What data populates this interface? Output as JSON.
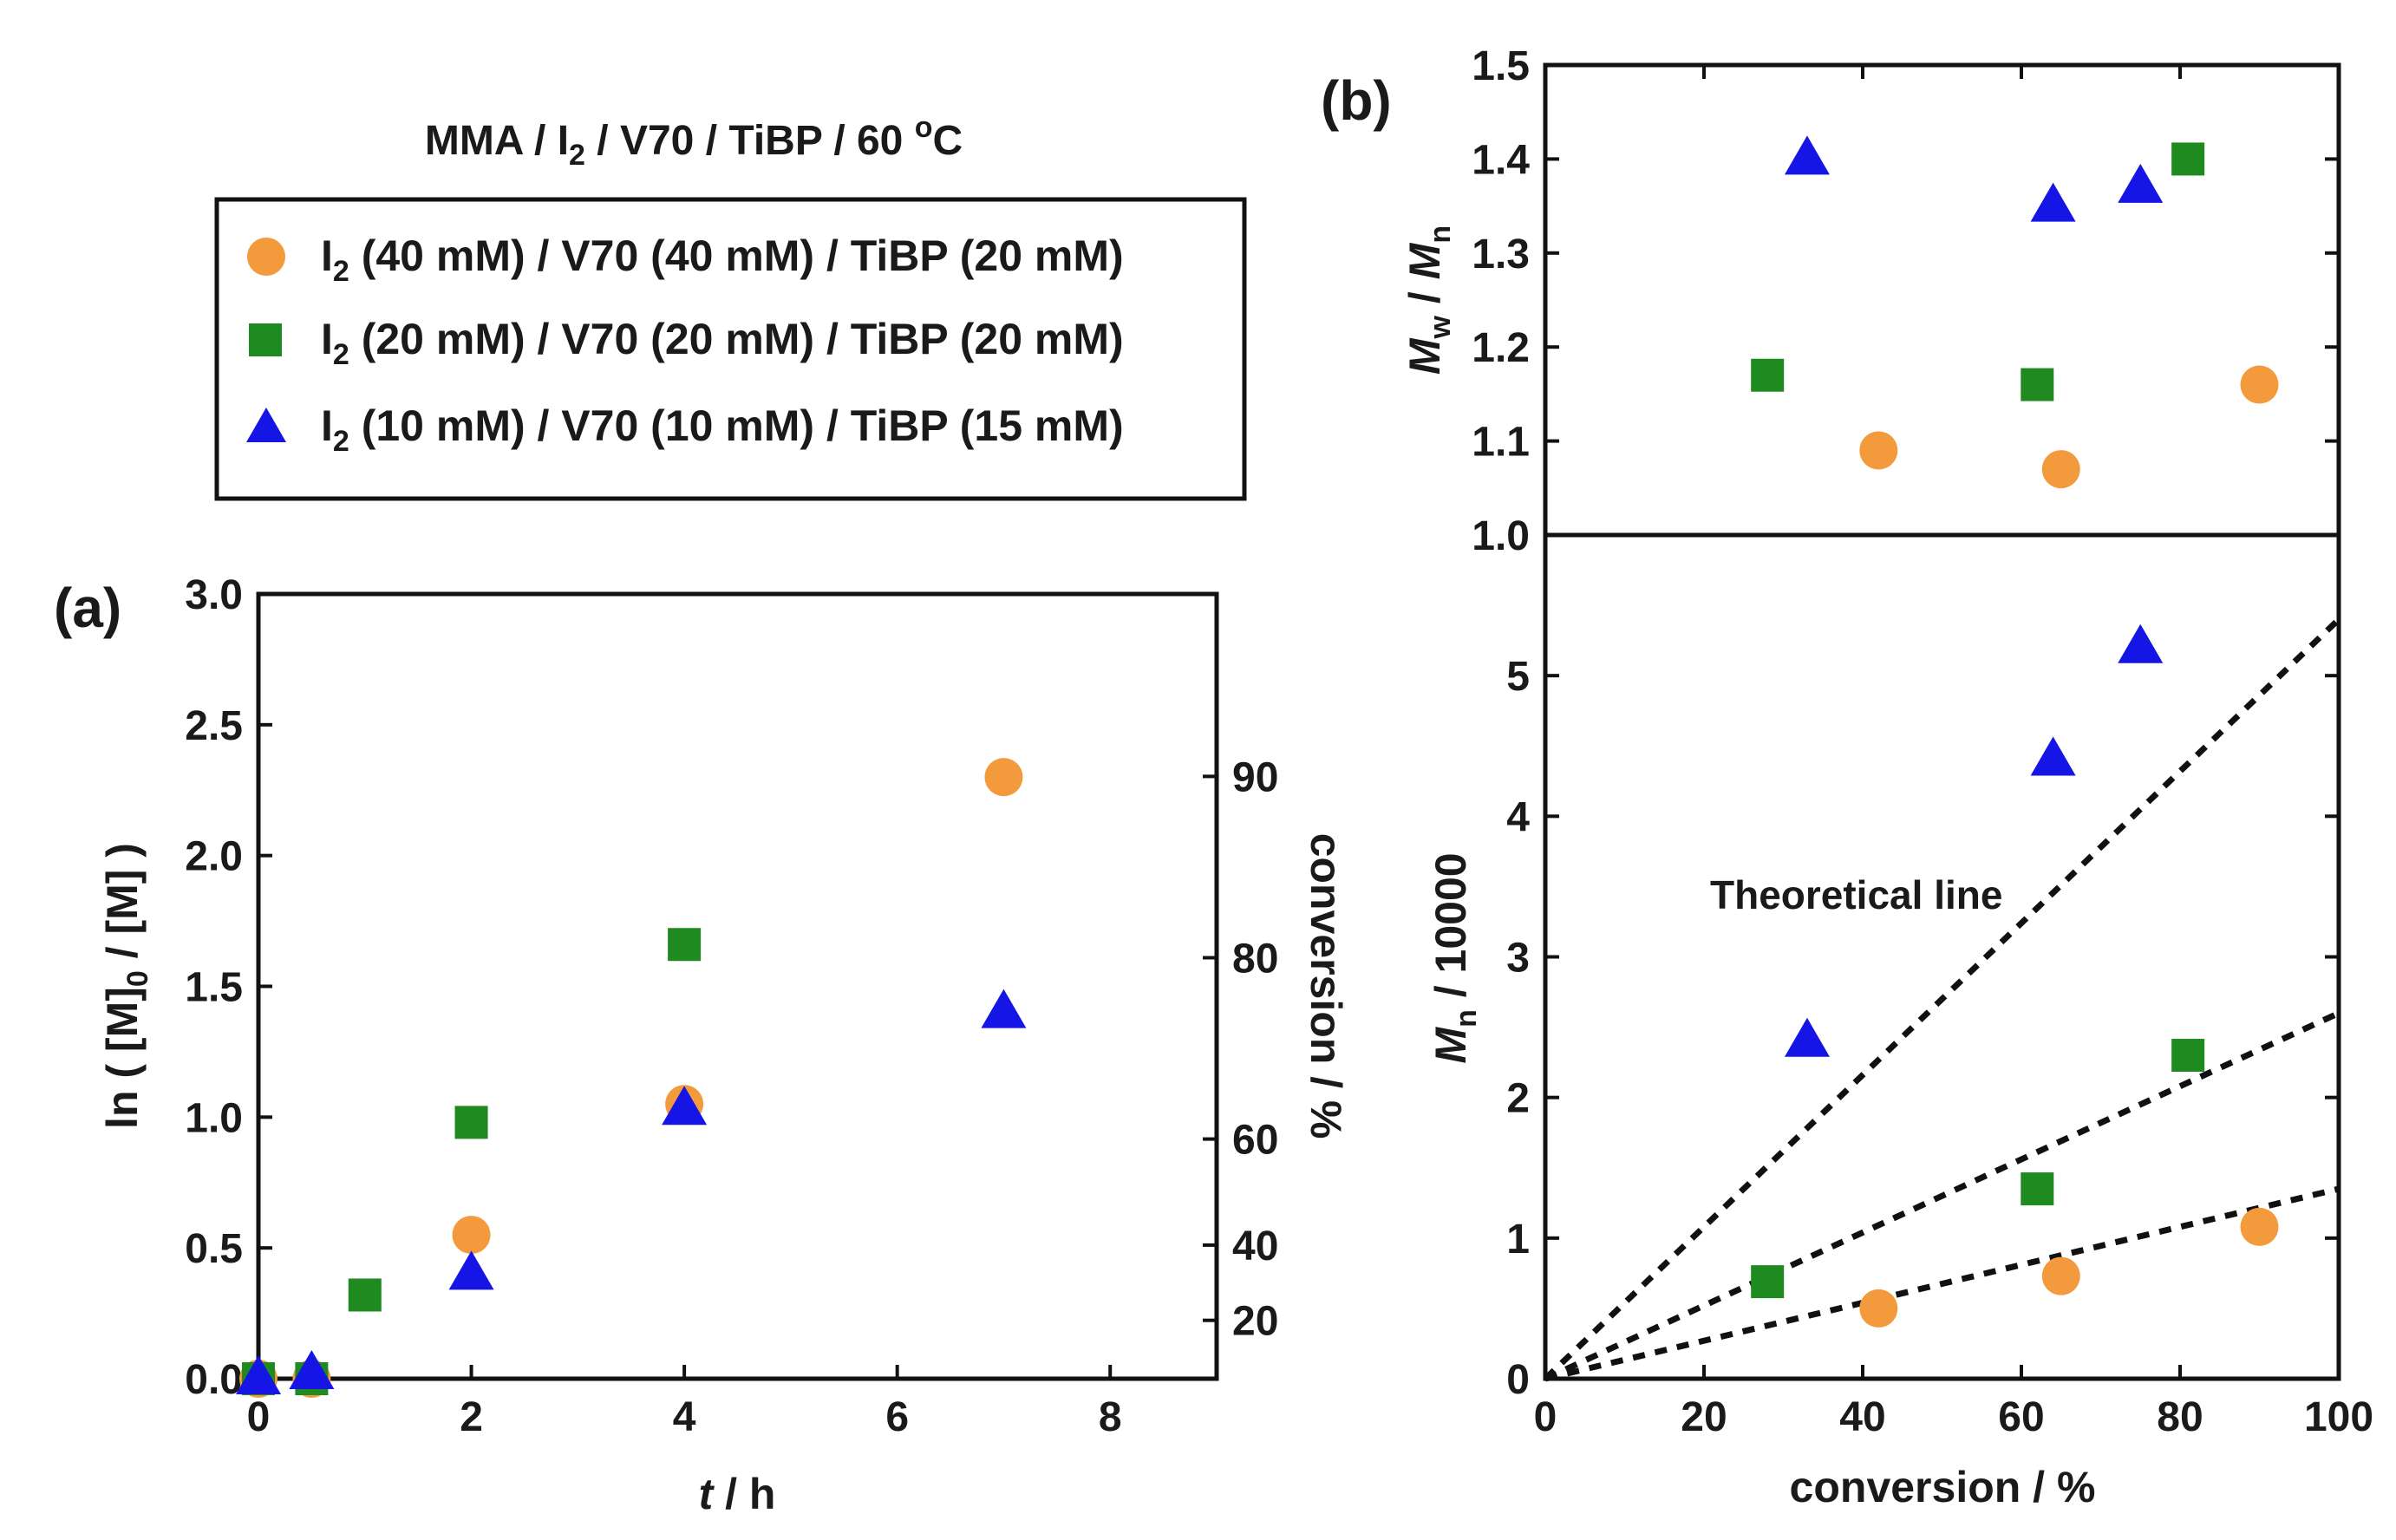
{
  "figure_title": {
    "text": "MMA / I",
    "sub": "2",
    "rest": " / V70 / TiBP / 60 ",
    "sup": "o",
    "tail": "C"
  },
  "legend": [
    {
      "id": "s40",
      "pre": "I",
      "sub": "2",
      "text": " (40 mM) / V70 (40 mM) / TiBP (20 mM)",
      "marker": "circle",
      "color": "#F39A3C"
    },
    {
      "id": "s20",
      "pre": "I",
      "sub": "2",
      "text": " (20 mM) / V70 (20 mM) / TiBP (20 mM)",
      "marker": "square",
      "color": "#1F8A1F"
    },
    {
      "id": "s10",
      "pre": "I",
      "sub": "2",
      "text": " (10 mM) / V70 (10 mM) / TiBP (15 mM)",
      "marker": "triangle",
      "color": "#1515E6"
    }
  ],
  "chart_data": [
    {
      "id": "a",
      "panel_label": "(a)",
      "type": "scatter",
      "xlabel": {
        "italic": "t",
        "rest": " / h"
      },
      "ylabel": {
        "a": "ln ( [M]",
        "sub": "0",
        "b": " / [M] )"
      },
      "y2label": "conversion / %",
      "xlim": [
        0,
        9
      ],
      "ylim": [
        0,
        3.0
      ],
      "xticks": [
        0,
        2,
        4,
        6,
        8
      ],
      "xtick_labels": [
        "0",
        "2",
        "4",
        "6",
        "8"
      ],
      "yticks": [
        0,
        0.5,
        1.0,
        1.5,
        2.0,
        2.5,
        3.0
      ],
      "ytick_labels": [
        "0.0",
        "0.5",
        "1.0",
        "1.5",
        "2.0",
        "2.5",
        "3.0"
      ],
      "y2ticks": [
        20,
        40,
        60,
        80,
        90
      ],
      "y2tick_labels": [
        "20",
        "40",
        "60",
        "80",
        "90"
      ],
      "series": [
        {
          "name": "I2 (40 mM) / V70 (40 mM) / TiBP (20 mM)",
          "marker": "circle",
          "color": "#F39A3C",
          "x": [
            0,
            0.5,
            2,
            4,
            7
          ],
          "y": [
            0.0,
            0.0,
            0.55,
            1.05,
            2.3
          ]
        },
        {
          "name": "I2 (20 mM) / V70 (20 mM) / TiBP (20 mM)",
          "marker": "square",
          "color": "#1F8A1F",
          "x": [
            0,
            0.5,
            1,
            2,
            4
          ],
          "y": [
            0.0,
            0.0,
            0.32,
            0.98,
            1.66
          ]
        },
        {
          "name": "I2 (10 mM) / V70 (10 mM) / TiBP (15 mM)",
          "marker": "triangle",
          "color": "#1515E6",
          "x": [
            0,
            0.5,
            2,
            4,
            7
          ],
          "y": [
            0.0,
            0.02,
            0.4,
            1.03,
            1.4
          ]
        }
      ]
    },
    {
      "id": "b_top",
      "panel_label": "(b)",
      "type": "scatter",
      "ylabel": {
        "i1": "M",
        "sub1": "w",
        "mid": " / ",
        "i2": "M",
        "sub2": "n"
      },
      "xlim": [
        0,
        100
      ],
      "ylim": [
        1.0,
        1.5
      ],
      "yticks": [
        1.0,
        1.1,
        1.2,
        1.3,
        1.4,
        1.5
      ],
      "ytick_labels": [
        "1.0",
        "1.1",
        "1.2",
        "1.3",
        "1.4",
        "1.5"
      ],
      "series": [
        {
          "name": "I2 (40 mM) / V70 (40 mM) / TiBP (20 mM)",
          "marker": "circle",
          "color": "#F39A3C",
          "x": [
            42,
            65,
            90
          ],
          "y": [
            1.09,
            1.07,
            1.16
          ]
        },
        {
          "name": "I2 (20 mM) / V70 (20 mM) / TiBP (20 mM)",
          "marker": "square",
          "color": "#1F8A1F",
          "x": [
            28,
            62,
            81
          ],
          "y": [
            1.17,
            1.16,
            1.4
          ]
        },
        {
          "name": "I2 (10 mM) / V70 (10 mM) / TiBP (15 mM)",
          "marker": "triangle",
          "color": "#1515E6",
          "x": [
            33,
            64,
            75
          ],
          "y": [
            1.4,
            1.35,
            1.37
          ]
        }
      ]
    },
    {
      "id": "b_bottom",
      "type": "scatter",
      "xlabel": "conversion / %",
      "ylabel": {
        "i": "M",
        "sub": "n",
        "rest": " / 10000"
      },
      "xlim": [
        0,
        100
      ],
      "ylim": [
        0,
        6
      ],
      "xticks": [
        0,
        20,
        40,
        60,
        80,
        100
      ],
      "xtick_labels": [
        "0",
        "20",
        "40",
        "60",
        "80",
        "100"
      ],
      "yticks": [
        0,
        1,
        2,
        3,
        4,
        5
      ],
      "ytick_labels": [
        "0",
        "1",
        "2",
        "3",
        "4",
        "5"
      ],
      "annotation": "Theoretical line",
      "theoretical_lines": [
        {
          "name": "theoretical-line-10mM",
          "x": [
            0,
            100
          ],
          "y": [
            0,
            5.4
          ]
        },
        {
          "name": "theoretical-line-20mM",
          "x": [
            0,
            100
          ],
          "y": [
            0,
            2.6
          ]
        },
        {
          "name": "theoretical-line-40mM",
          "x": [
            0,
            100
          ],
          "y": [
            0,
            1.35
          ]
        }
      ],
      "series": [
        {
          "name": "I2 (40 mM) / V70 (40 mM) / TiBP (20 mM)",
          "marker": "circle",
          "color": "#F39A3C",
          "x": [
            42,
            65,
            90
          ],
          "y": [
            0.5,
            0.73,
            1.08
          ]
        },
        {
          "name": "I2 (20 mM) / V70 (20 mM) / TiBP (20 mM)",
          "marker": "square",
          "color": "#1F8A1F",
          "x": [
            28,
            62,
            81
          ],
          "y": [
            0.69,
            1.35,
            2.3
          ]
        },
        {
          "name": "I2 (10 mM) / V70 (10 mM) / TiBP (15 mM)",
          "marker": "triangle",
          "color": "#1515E6",
          "x": [
            33,
            64,
            75
          ],
          "y": [
            2.4,
            4.4,
            5.2
          ]
        }
      ]
    }
  ]
}
